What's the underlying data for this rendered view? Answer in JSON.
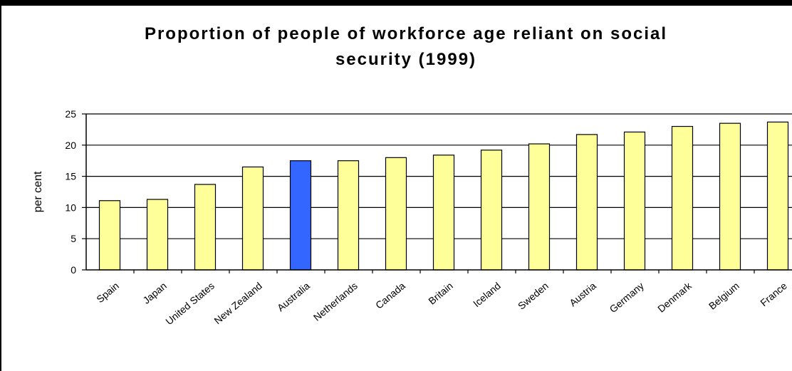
{
  "chart_data": {
    "type": "bar",
    "title_lines": [
      "Proportion of people of workforce age reliant on social",
      "security (1999)"
    ],
    "ylabel": "per cent",
    "xlabel": "",
    "ylim": [
      0,
      25
    ],
    "yticks": [
      0,
      5,
      10,
      15,
      20,
      25
    ],
    "grid": true,
    "categories": [
      "Spain",
      "Japan",
      "United States",
      "New Zealand",
      "Australia",
      "Netherlands",
      "Canada",
      "Britain",
      "Iceland",
      "Sweden",
      "Austria",
      "Germany",
      "Denmark",
      "Belgium",
      "France"
    ],
    "values": [
      11.1,
      11.3,
      13.7,
      16.5,
      17.5,
      17.5,
      18.0,
      18.4,
      19.2,
      20.2,
      21.7,
      22.1,
      23.0,
      23.5,
      23.7
    ],
    "highlight": "Australia",
    "colors": {
      "bar": "#FFFF99",
      "highlight": "#3366FF",
      "outline": "#000000",
      "grid": "#000000"
    }
  }
}
